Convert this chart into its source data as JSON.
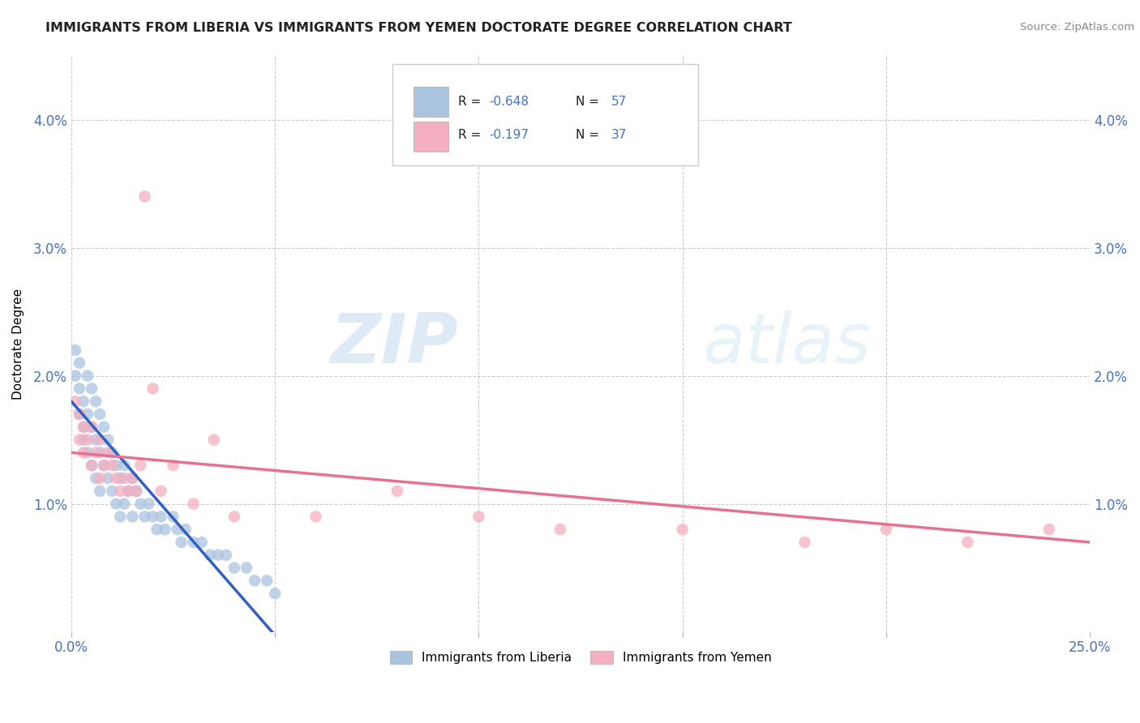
{
  "title": "IMMIGRANTS FROM LIBERIA VS IMMIGRANTS FROM YEMEN DOCTORATE DEGREE CORRELATION CHART",
  "source": "Source: ZipAtlas.com",
  "ylabel": "Doctorate Degree",
  "xlim": [
    0.0,
    0.25
  ],
  "ylim": [
    0.0,
    0.045
  ],
  "legend_liberia": "Immigrants from Liberia",
  "legend_yemen": "Immigrants from Yemen",
  "r_liberia": -0.648,
  "n_liberia": 57,
  "r_yemen": -0.197,
  "n_yemen": 37,
  "liberia_color": "#aac4e0",
  "yemen_color": "#f4afc0",
  "liberia_line_color": "#3060c0",
  "yemen_line_color": "#e87090",
  "watermark_zip": "ZIP",
  "watermark_atlas": "atlas",
  "liberia_x": [
    0.001,
    0.001,
    0.002,
    0.002,
    0.002,
    0.003,
    0.003,
    0.003,
    0.004,
    0.004,
    0.004,
    0.005,
    0.005,
    0.005,
    0.006,
    0.006,
    0.006,
    0.007,
    0.007,
    0.007,
    0.008,
    0.008,
    0.009,
    0.009,
    0.01,
    0.01,
    0.011,
    0.011,
    0.012,
    0.012,
    0.013,
    0.013,
    0.014,
    0.015,
    0.015,
    0.016,
    0.017,
    0.018,
    0.019,
    0.02,
    0.021,
    0.022,
    0.023,
    0.025,
    0.026,
    0.027,
    0.028,
    0.03,
    0.032,
    0.034,
    0.036,
    0.038,
    0.04,
    0.043,
    0.045,
    0.048,
    0.05
  ],
  "liberia_y": [
    0.022,
    0.02,
    0.019,
    0.021,
    0.017,
    0.018,
    0.016,
    0.015,
    0.02,
    0.017,
    0.014,
    0.019,
    0.016,
    0.013,
    0.018,
    0.015,
    0.012,
    0.017,
    0.014,
    0.011,
    0.016,
    0.013,
    0.015,
    0.012,
    0.014,
    0.011,
    0.013,
    0.01,
    0.012,
    0.009,
    0.013,
    0.01,
    0.011,
    0.012,
    0.009,
    0.011,
    0.01,
    0.009,
    0.01,
    0.009,
    0.008,
    0.009,
    0.008,
    0.009,
    0.008,
    0.007,
    0.008,
    0.007,
    0.007,
    0.006,
    0.006,
    0.006,
    0.005,
    0.005,
    0.004,
    0.004,
    0.003
  ],
  "yemen_x": [
    0.001,
    0.002,
    0.002,
    0.003,
    0.003,
    0.004,
    0.005,
    0.005,
    0.006,
    0.007,
    0.007,
    0.008,
    0.009,
    0.01,
    0.011,
    0.012,
    0.013,
    0.014,
    0.015,
    0.016,
    0.017,
    0.018,
    0.02,
    0.022,
    0.025,
    0.03,
    0.035,
    0.04,
    0.06,
    0.08,
    0.1,
    0.12,
    0.15,
    0.18,
    0.2,
    0.22,
    0.24
  ],
  "yemen_y": [
    0.018,
    0.017,
    0.015,
    0.016,
    0.014,
    0.015,
    0.016,
    0.013,
    0.014,
    0.015,
    0.012,
    0.013,
    0.014,
    0.013,
    0.012,
    0.011,
    0.012,
    0.011,
    0.012,
    0.011,
    0.013,
    0.034,
    0.019,
    0.011,
    0.013,
    0.01,
    0.015,
    0.009,
    0.009,
    0.011,
    0.009,
    0.008,
    0.008,
    0.007,
    0.008,
    0.007,
    0.008
  ]
}
